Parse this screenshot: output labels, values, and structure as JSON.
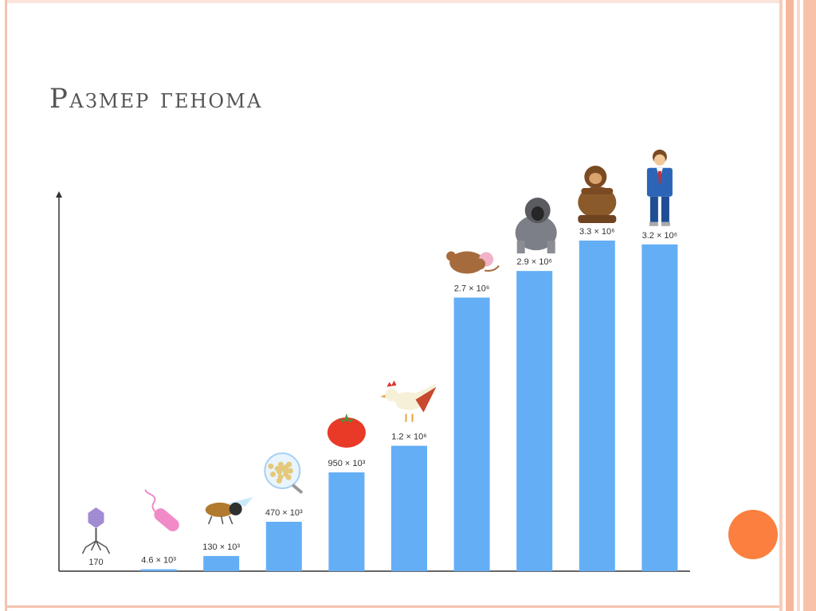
{
  "title": "Размер генома",
  "chart_data": {
    "type": "bar",
    "categories": [
      "phage",
      "bacterium",
      "fly",
      "yeast",
      "tomato",
      "chicken",
      "mouse",
      "gorilla",
      "chimpanzee",
      "human"
    ],
    "values": [
      170,
      4600,
      130000,
      470000,
      950000,
      1200000,
      2700000,
      2900000,
      3300000,
      3200000
    ],
    "bar_labels": [
      "170",
      "4.6 × 10³",
      "130 × 10³",
      "470 × 10³",
      "950 × 10³",
      "1.2 × 10⁶",
      "2.7 × 10⁶",
      "2.9 × 10⁶",
      "3.3 × 10⁶",
      "3.2 × 10⁶"
    ],
    "icons": [
      "phage-icon",
      "bacterium-icon",
      "fly-icon",
      "yeast-icon",
      "tomato-icon",
      "chicken-icon",
      "mouse-icon",
      "gorilla-icon",
      "chimpanzee-icon",
      "human-icon"
    ],
    "display_heights": [
      0.0,
      0.005,
      0.04,
      0.13,
      0.26,
      0.33,
      0.72,
      0.79,
      0.87,
      0.86
    ],
    "scale": "non-linear (illustrative)",
    "title": "",
    "xlabel": "",
    "ylabel": "",
    "grid": false,
    "legend": "none",
    "bar_color": "#64aef6"
  },
  "colors": {
    "accent": "#fb7f3f",
    "frame": "#f6c3ad",
    "axis": "#333333",
    "label": "#333333"
  }
}
